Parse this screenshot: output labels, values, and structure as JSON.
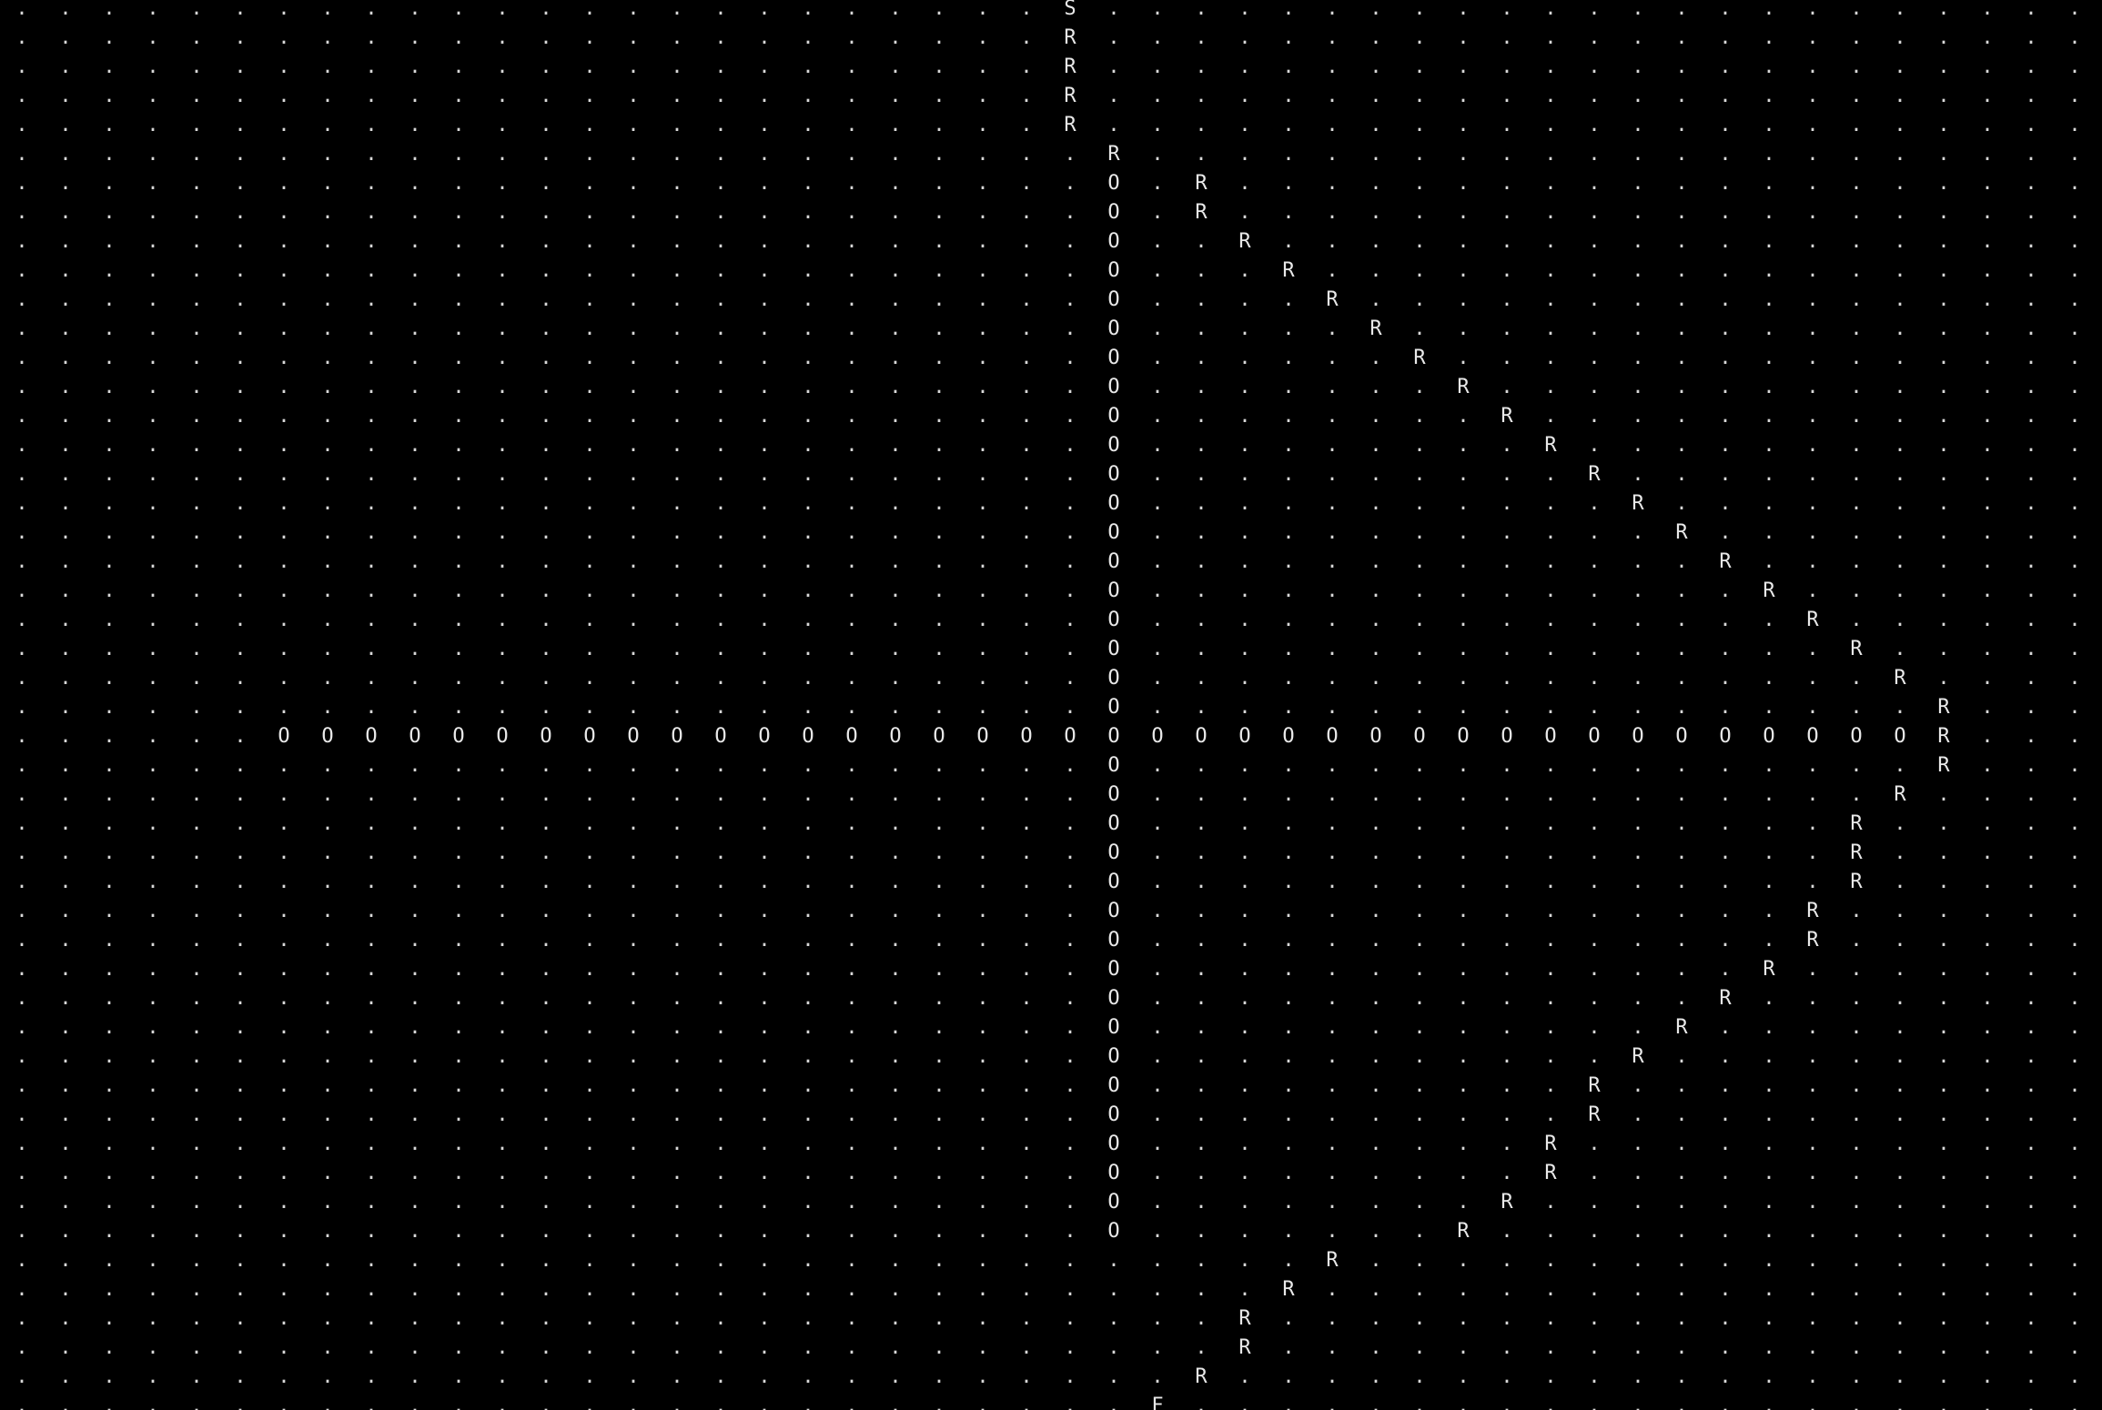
{
  "terminal": {
    "background": "#000000",
    "foreground": "#e8e8e8"
  },
  "grid_rows": [
    "........................S.......................",
    "........................R.......................",
    "........................R.......................",
    "........................R.......................",
    "........................R.......................",
    ".........................R......................",
    ".........................O.R....................",
    ".........................O.R....................",
    ".........................O..R...................",
    ".........................O...R..................",
    ".........................O....R.................",
    ".........................O.....R................",
    ".........................O......R...............",
    ".........................O.......R..............",
    ".........................O........R.............",
    ".........................O.........R............",
    ".........................O..........R...........",
    ".........................O...........R..........",
    ".........................O............R.........",
    ".........................O.............R........",
    ".........................O..............R.......",
    ".........................O...............R......",
    ".........................O................R.....",
    ".........................O.................R....",
    ".........................O..................R...",
    "......OOOOOOOOOOOOOOOOOOOOOOOOOOOOOOOOOOOOOOR...",
    ".........................O..................R...",
    ".........................O.................R....",
    ".........................O................R.....",
    ".........................O................R.....",
    ".........................O................R.....",
    ".........................O...............R......",
    ".........................O...............R......",
    ".........................O..............R.......",
    ".........................O.............R........",
    ".........................O............R.........",
    ".........................O...........R..........",
    ".........................O..........R...........",
    ".........................O..........R...........",
    ".........................O.........R............",
    ".........................O.........R............",
    ".........................O........R.............",
    ".........................O.......R..............",
    "..............................R.................",
    ".............................R..................",
    "............................R...................",
    "............................R...................",
    "...........................R....................",
    "..........................F....................."
  ]
}
